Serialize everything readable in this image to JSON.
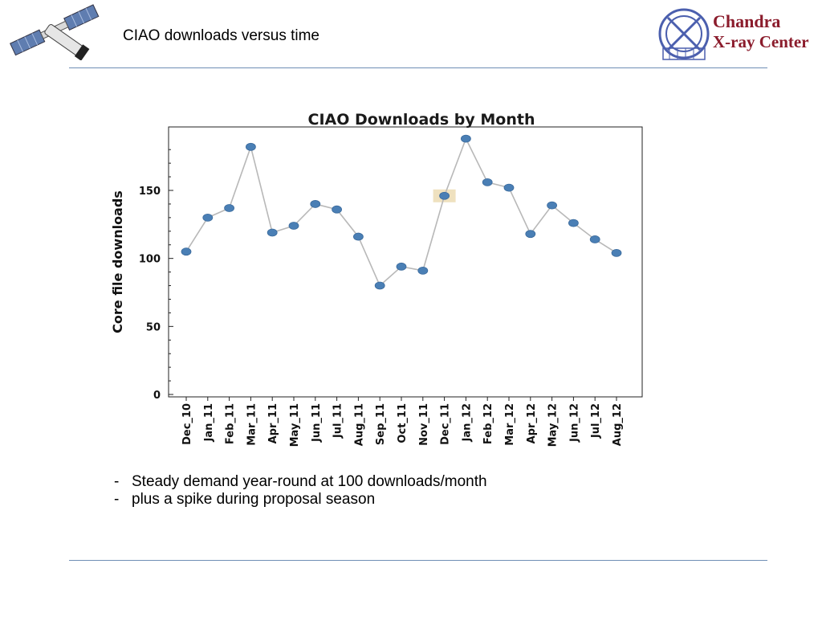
{
  "header": {
    "title": "CIAO downloads versus time",
    "logo_line1": "Chandra",
    "logo_line2": "X-ray Center"
  },
  "notes": {
    "items": [
      {
        "dash": "-",
        "text": "Steady demand year-round at 100 downloads/month"
      },
      {
        "dash": "-",
        "text": "plus a spike during proposal season"
      }
    ]
  },
  "colors": {
    "rule": "#6f8fb5",
    "marker": "#4a7fb5",
    "line": "#b8b8b8",
    "highlight": "#efe1bf",
    "logo_text": "#8b1c2c"
  },
  "chart_data": {
    "type": "line",
    "title": "CIAO Downloads by Month",
    "xlabel": "",
    "ylabel": "Core file downloads",
    "categories": [
      "Dec_10",
      "Jan_11",
      "Feb_11",
      "Mar_11",
      "Apr_11",
      "May_11",
      "Jun_11",
      "Jul_11",
      "Aug_11",
      "Sep_11",
      "Oct_11",
      "Nov_11",
      "Dec_11",
      "Jan_12",
      "Feb_12",
      "Mar_12",
      "Apr_12",
      "May_12",
      "Jun_12",
      "Jul_12",
      "Aug_12"
    ],
    "values": [
      105,
      130,
      137,
      182,
      119,
      124,
      140,
      136,
      116,
      80,
      94,
      91,
      146,
      188,
      156,
      152,
      118,
      139,
      126,
      114,
      104
    ],
    "ylim": [
      0,
      200
    ],
    "yticks": [
      0,
      50,
      100,
      150
    ],
    "highlight_index": 12,
    "grid": false,
    "legend": "none"
  }
}
